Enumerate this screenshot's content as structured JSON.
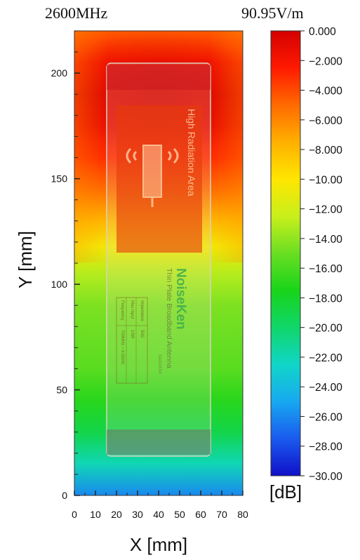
{
  "header": {
    "frequency": "2600MHz",
    "max_field": "90.95V/m"
  },
  "chart_data": {
    "type": "heatmap",
    "title": "",
    "xlabel": "X [mm]",
    "ylabel": "Y [mm]",
    "xlim": [
      0,
      80
    ],
    "ylim": [
      0,
      220
    ],
    "x_ticks": [
      "0",
      "10",
      "20",
      "30",
      "40",
      "50",
      "60",
      "70",
      "80"
    ],
    "y_ticks": [
      "0",
      "50",
      "100",
      "150",
      "200"
    ],
    "x_tick_values": [
      0,
      10,
      20,
      30,
      40,
      50,
      60,
      70,
      80
    ],
    "y_tick_values": [
      0,
      50,
      100,
      150,
      200
    ],
    "colorbar": {
      "unit": "[dB]",
      "min": -30,
      "max": 0,
      "tick_values": [
        0,
        -2,
        -4,
        -6,
        -8,
        -10,
        -12,
        -14,
        -16,
        -18,
        -20,
        -22,
        -24,
        -26,
        -28,
        -30
      ],
      "tick_labels": [
        "0.000",
        "−2.000",
        "−4.000",
        "−6.000",
        "−8.000",
        "−10.00",
        "−12.00",
        "−14.00",
        "−16.00",
        "−18.00",
        "−20.00",
        "−22.00",
        "−24.00",
        "−26.00",
        "−28.00",
        "−30.00"
      ],
      "colors": [
        "#d40000",
        "#ff1a00",
        "#ff6a00",
        "#ffb000",
        "#ffe600",
        "#c8ef1c",
        "#6ade22",
        "#18d41a",
        "#10d66a",
        "#10d6c8",
        "#18a8f0",
        "#1a5aee",
        "#1010c8"
      ]
    },
    "y_profile": [
      {
        "y": 220,
        "db": -4.5
      },
      {
        "y": 205,
        "db": -2.2
      },
      {
        "y": 190,
        "db": -1.2
      },
      {
        "y": 175,
        "db": -1.6
      },
      {
        "y": 160,
        "db": -3.0
      },
      {
        "y": 145,
        "db": -5.0
      },
      {
        "y": 130,
        "db": -7.8
      },
      {
        "y": 118,
        "db": -10.5
      },
      {
        "y": 105,
        "db": -13.0
      },
      {
        "y": 90,
        "db": -14.5
      },
      {
        "y": 75,
        "db": -15.0
      },
      {
        "y": 60,
        "db": -15.5
      },
      {
        "y": 45,
        "db": -17.0
      },
      {
        "y": 30,
        "db": -19.0
      },
      {
        "y": 15,
        "db": -22.0
      },
      {
        "y": 0,
        "db": -26.0
      }
    ],
    "antenna": {
      "brand": "NoiseKen",
      "product": "Thin Plate Broadband Antenna",
      "model": "SAXXXXX",
      "warning": "High Radiation Area",
      "spec_labels": [
        "Frequency",
        "Max Input",
        "Impedance"
      ],
      "spec_values": [
        "700MHz ~ 6.0GHz",
        "10W",
        "50Ω"
      ]
    }
  }
}
